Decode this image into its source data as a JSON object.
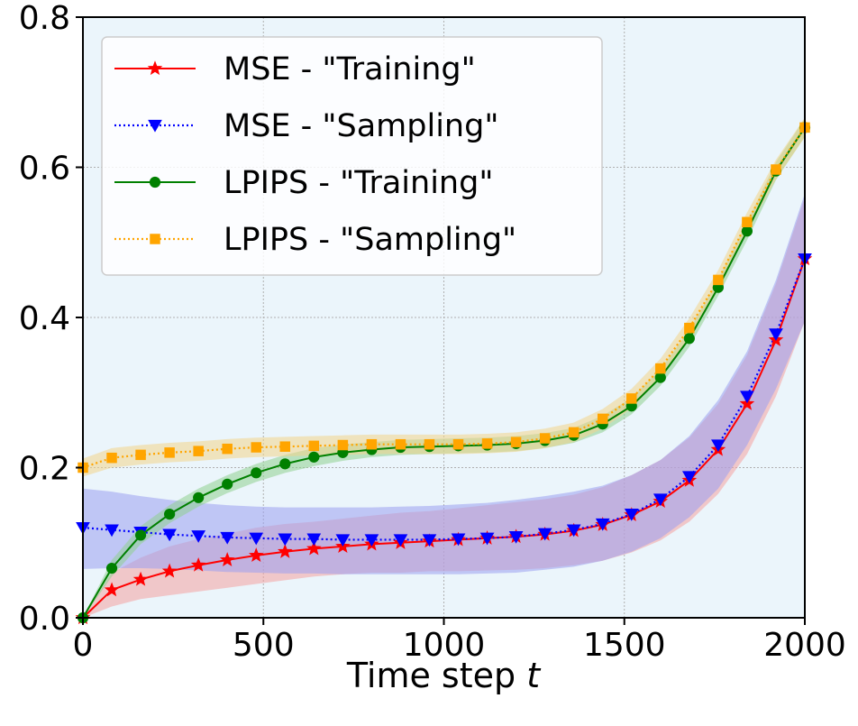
{
  "chart_data": {
    "type": "line",
    "title": "",
    "xlabel": "Time step",
    "xlabel_var": "t",
    "ylabel": "",
    "xlim": [
      0,
      2000
    ],
    "ylim": [
      0,
      0.8
    ],
    "xticks": [
      0,
      500,
      1000,
      1500,
      2000
    ],
    "xtick_labels": [
      "0",
      "500",
      "1000",
      "1500",
      "2000"
    ],
    "yticks": [
      0.0,
      0.2,
      0.4,
      0.6,
      0.8
    ],
    "ytick_labels": [
      "0.0",
      "0.2",
      "0.4",
      "0.6",
      "0.8"
    ],
    "grid": true,
    "legend_position": "top-left",
    "background_color": "#ebf5fb",
    "x": [
      0,
      80,
      160,
      240,
      320,
      400,
      480,
      560,
      640,
      720,
      800,
      880,
      960,
      1040,
      1120,
      1200,
      1280,
      1360,
      1440,
      1520,
      1600,
      1680,
      1760,
      1840,
      1920,
      2000
    ],
    "series": [
      {
        "name": "MSE - \"Training\"",
        "color": "#ff0000",
        "linestyle": "solid",
        "marker": "star",
        "band_color": "#f4a0a0",
        "values": [
          0.0,
          0.037,
          0.051,
          0.062,
          0.07,
          0.077,
          0.083,
          0.088,
          0.092,
          0.095,
          0.098,
          0.1,
          0.102,
          0.104,
          0.106,
          0.108,
          0.111,
          0.116,
          0.124,
          0.137,
          0.155,
          0.183,
          0.224,
          0.285,
          0.37,
          0.478
        ],
        "band": [
          [
            0.0,
            0.015,
            0.025,
            0.03,
            0.035,
            0.04,
            0.045,
            0.05,
            0.055,
            0.058,
            0.06,
            0.06,
            0.062,
            0.062,
            0.063,
            0.064,
            0.066,
            0.07,
            0.076,
            0.087,
            0.103,
            0.128,
            0.165,
            0.218,
            0.295,
            0.395
          ],
          [
            0.0,
            0.06,
            0.08,
            0.095,
            0.105,
            0.112,
            0.12,
            0.125,
            0.128,
            0.132,
            0.136,
            0.14,
            0.142,
            0.146,
            0.15,
            0.154,
            0.158,
            0.164,
            0.174,
            0.19,
            0.21,
            0.24,
            0.285,
            0.35,
            0.445,
            0.56
          ]
        ]
      },
      {
        "name": "MSE - \"Sampling\"",
        "color": "#0000ff",
        "linestyle": "dotted",
        "marker": "triangle-down",
        "band_color": "#9a9ef0",
        "values": [
          0.12,
          0.117,
          0.114,
          0.111,
          0.109,
          0.107,
          0.106,
          0.105,
          0.105,
          0.104,
          0.104,
          0.104,
          0.104,
          0.105,
          0.106,
          0.108,
          0.112,
          0.117,
          0.125,
          0.138,
          0.158,
          0.188,
          0.23,
          0.295,
          0.378,
          0.478
        ],
        "band": [
          [
            0.065,
            0.066,
            0.066,
            0.065,
            0.063,
            0.061,
            0.06,
            0.059,
            0.059,
            0.058,
            0.058,
            0.058,
            0.058,
            0.058,
            0.059,
            0.06,
            0.064,
            0.068,
            0.076,
            0.088,
            0.106,
            0.134,
            0.172,
            0.23,
            0.305,
            0.395
          ],
          [
            0.172,
            0.168,
            0.162,
            0.157,
            0.153,
            0.15,
            0.148,
            0.147,
            0.147,
            0.147,
            0.147,
            0.148,
            0.149,
            0.151,
            0.153,
            0.157,
            0.162,
            0.168,
            0.176,
            0.19,
            0.21,
            0.242,
            0.29,
            0.355,
            0.45,
            0.565
          ]
        ]
      },
      {
        "name": "LPIPS - \"Training\"",
        "color": "#008000",
        "linestyle": "solid",
        "marker": "circle",
        "band_color": "#8fd08f",
        "values": [
          0.0,
          0.066,
          0.11,
          0.138,
          0.16,
          0.178,
          0.193,
          0.205,
          0.214,
          0.22,
          0.224,
          0.227,
          0.228,
          0.229,
          0.23,
          0.232,
          0.236,
          0.243,
          0.258,
          0.282,
          0.32,
          0.372,
          0.44,
          0.515,
          0.595,
          0.653
        ],
        "band": [
          [
            0.0,
            0.055,
            0.098,
            0.126,
            0.148,
            0.166,
            0.181,
            0.193,
            0.202,
            0.209,
            0.214,
            0.217,
            0.218,
            0.219,
            0.22,
            0.222,
            0.226,
            0.233,
            0.247,
            0.271,
            0.309,
            0.361,
            0.429,
            0.503,
            0.583,
            0.641
          ],
          [
            0.0,
            0.077,
            0.122,
            0.15,
            0.172,
            0.19,
            0.205,
            0.217,
            0.226,
            0.231,
            0.234,
            0.237,
            0.238,
            0.239,
            0.24,
            0.242,
            0.246,
            0.253,
            0.269,
            0.293,
            0.331,
            0.383,
            0.451,
            0.527,
            0.607,
            0.665
          ]
        ]
      },
      {
        "name": "LPIPS - \"Sampling\"",
        "color": "#ffa500",
        "linestyle": "dotted",
        "marker": "square",
        "band_color": "#f2d48a",
        "values": [
          0.2,
          0.213,
          0.217,
          0.22,
          0.222,
          0.225,
          0.227,
          0.228,
          0.229,
          0.23,
          0.231,
          0.231,
          0.231,
          0.231,
          0.232,
          0.234,
          0.239,
          0.247,
          0.265,
          0.292,
          0.332,
          0.386,
          0.45,
          0.527,
          0.597,
          0.653
        ],
        "band": [
          [
            0.188,
            0.2,
            0.204,
            0.207,
            0.209,
            0.212,
            0.214,
            0.215,
            0.216,
            0.217,
            0.218,
            0.218,
            0.218,
            0.218,
            0.219,
            0.221,
            0.226,
            0.234,
            0.252,
            0.279,
            0.319,
            0.373,
            0.437,
            0.514,
            0.584,
            0.64
          ],
          [
            0.212,
            0.226,
            0.23,
            0.233,
            0.235,
            0.238,
            0.24,
            0.241,
            0.242,
            0.243,
            0.244,
            0.244,
            0.244,
            0.244,
            0.245,
            0.247,
            0.252,
            0.26,
            0.278,
            0.305,
            0.345,
            0.399,
            0.463,
            0.54,
            0.61,
            0.666
          ]
        ]
      }
    ]
  }
}
